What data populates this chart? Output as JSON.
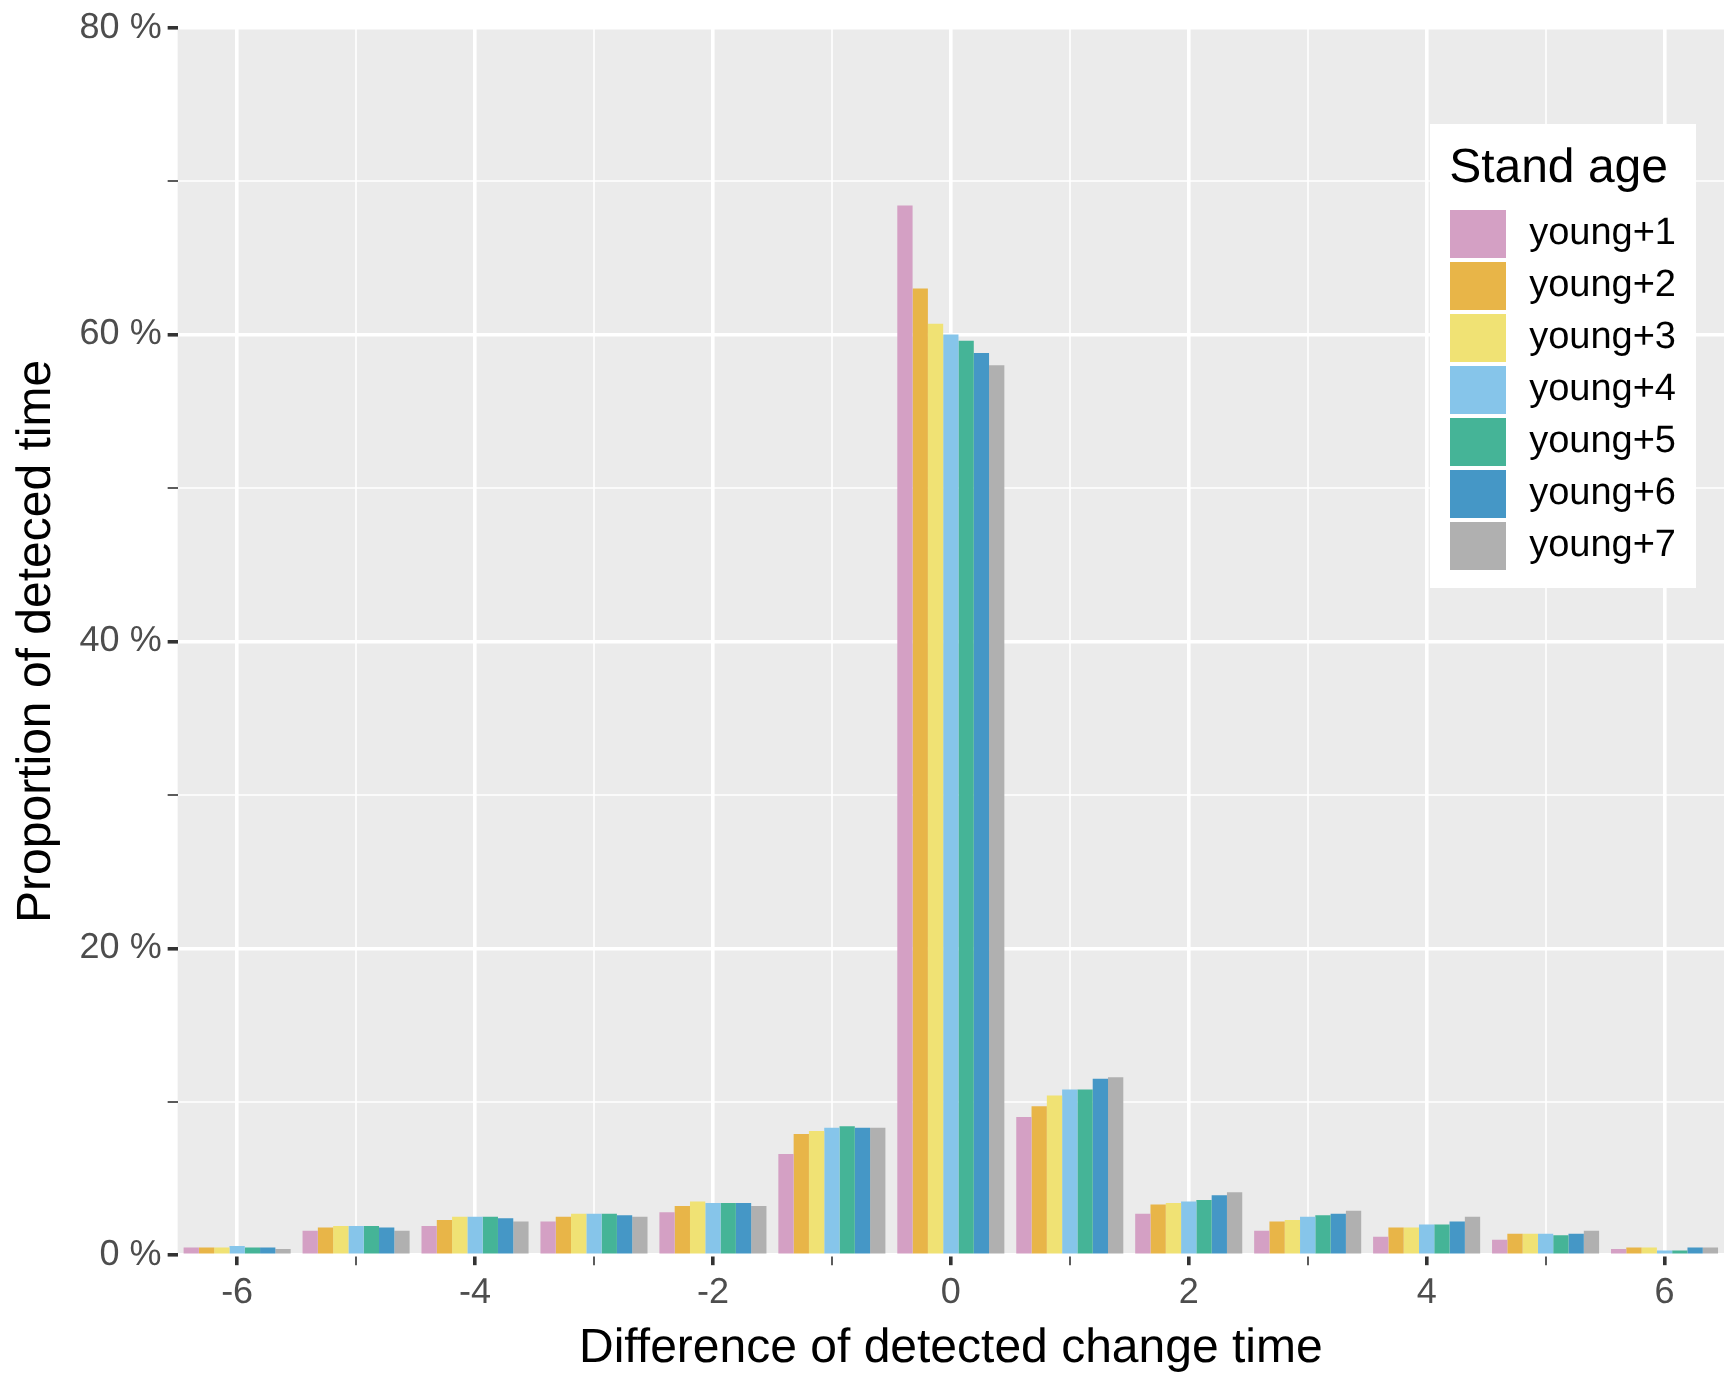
{
  "chart_data": {
    "type": "bar",
    "xlabel": "Difference of detected change time",
    "ylabel": "Proportion of deteced time",
    "legend_title": "Stand age",
    "legend": "top right",
    "grid": true,
    "categories": [
      "-6",
      null,
      "-4",
      null,
      "-2",
      null,
      "0",
      null,
      "2",
      null,
      "4",
      null,
      "6"
    ],
    "ylim": [
      0,
      80
    ],
    "yticks": [
      {
        "value": 0,
        "label": "0 %"
      },
      {
        "value": 10,
        "label": null
      },
      {
        "value": 20,
        "label": "20 %"
      },
      {
        "value": 30,
        "label": null
      },
      {
        "value": 40,
        "label": "40 %"
      },
      {
        "value": 50,
        "label": null
      },
      {
        "value": 60,
        "label": "60 %"
      },
      {
        "value": 70,
        "label": null
      },
      {
        "value": 80,
        "label": "80 %"
      }
    ],
    "series": [
      {
        "name": "young+1",
        "color": "#d4a0c4",
        "values": [
          0.5,
          1.6,
          1.9,
          2.2,
          2.8,
          6.6,
          68.4,
          9.0,
          2.7,
          1.6,
          1.2,
          1.0,
          0.4
        ]
      },
      {
        "name": "young+2",
        "color": "#e8b548",
        "values": [
          0.5,
          1.8,
          2.3,
          2.5,
          3.2,
          7.9,
          63.0,
          9.7,
          3.3,
          2.2,
          1.8,
          1.4,
          0.5
        ]
      },
      {
        "name": "young+3",
        "color": "#f0e274",
        "values": [
          0.5,
          1.9,
          2.5,
          2.7,
          3.5,
          8.1,
          60.7,
          10.4,
          3.4,
          2.3,
          1.8,
          1.4,
          0.5
        ]
      },
      {
        "name": "young+4",
        "color": "#86c5ea",
        "values": [
          0.6,
          1.9,
          2.5,
          2.7,
          3.4,
          8.3,
          60.0,
          10.8,
          3.5,
          2.5,
          2.0,
          1.4,
          0.3
        ]
      },
      {
        "name": "young+5",
        "color": "#45b497",
        "values": [
          0.5,
          1.9,
          2.5,
          2.7,
          3.4,
          8.4,
          59.6,
          10.8,
          3.6,
          2.6,
          2.0,
          1.3,
          0.3
        ]
      },
      {
        "name": "young+6",
        "color": "#4597c6",
        "values": [
          0.5,
          1.8,
          2.4,
          2.6,
          3.4,
          8.3,
          58.8,
          11.5,
          3.9,
          2.7,
          2.2,
          1.4,
          0.5
        ]
      },
      {
        "name": "young+7",
        "color": "#b0b0b0",
        "values": [
          0.4,
          1.6,
          2.2,
          2.5,
          3.2,
          8.3,
          58.0,
          11.6,
          4.1,
          2.9,
          2.5,
          1.6,
          0.5
        ]
      }
    ]
  }
}
